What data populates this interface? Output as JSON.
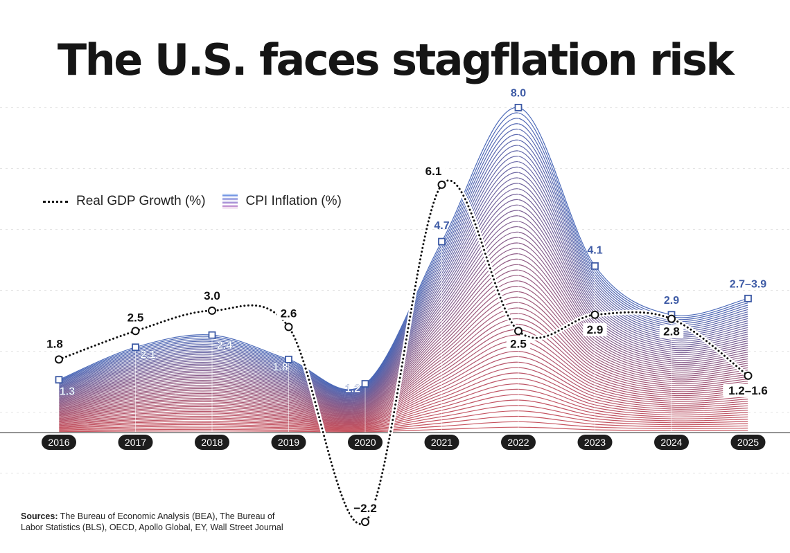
{
  "title": "The U.S. faces stagflation risk",
  "legend": {
    "gdp_label": "Real GDP Growth (%)",
    "cpi_label": "CPI Inflation (%)"
  },
  "sources": {
    "label": "Sources:",
    "text": "The Bureau of Economic Analysis (BEA), The Bureau of Labor Statistics (BLS), OECD, Apollo Global, EY, Wall Street Journal"
  },
  "colors": {
    "cpi_top": "#3a5bb1",
    "cpi_bottom": "#c2404d",
    "cpi_label": "#3d5aa5",
    "gdp_line": "#111111"
  },
  "chart_data": {
    "type": "line",
    "title": "The U.S. faces stagflation risk",
    "x": [
      "2016",
      "2017",
      "2018",
      "2019",
      "2020",
      "2021",
      "2022",
      "2023",
      "2024",
      "2025"
    ],
    "series": [
      {
        "name": "Real GDP Growth (%)",
        "style": "dotted-line",
        "values": [
          1.8,
          2.5,
          3.0,
          2.6,
          -2.2,
          6.1,
          2.5,
          2.9,
          2.8,
          1.4
        ],
        "labels": [
          "1.8",
          "2.5",
          "3.0",
          "2.6",
          "−2.2",
          "6.1",
          "2.5",
          "2.9",
          "2.8",
          "1.2–1.6"
        ]
      },
      {
        "name": "CPI Inflation (%)",
        "style": "striped-area",
        "values": [
          1.3,
          2.1,
          2.4,
          1.8,
          1.2,
          4.7,
          8.0,
          4.1,
          2.9,
          3.3
        ],
        "labels": [
          "1.3",
          "2.1",
          "2.4",
          "1.8",
          "1.2",
          "4.7",
          "8.0",
          "4.1",
          "2.9",
          "2.7–3.9"
        ]
      }
    ],
    "ylim": [
      -2.2,
      8.0
    ],
    "xlabel": "",
    "ylabel": "",
    "grid": true
  }
}
